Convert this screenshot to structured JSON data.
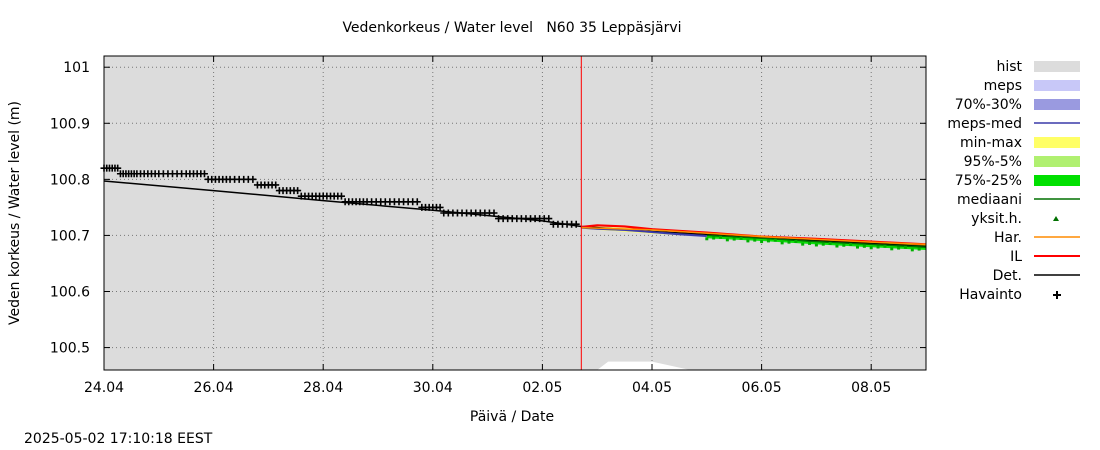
{
  "chart_data": {
    "type": "line",
    "title": "Vedenkorkeus / Water level   N60 35 Leppäsjärvi",
    "xlabel": "Päivä / Date",
    "ylabel": "Veden korkeus / Water level (m)",
    "timestamp": "2025-05-02 17:10:18 EEST",
    "x_unit": "days since 24.04",
    "xlim": [
      0,
      15
    ],
    "ylim": [
      100.46,
      101.02
    ],
    "x_ticks": [
      {
        "label": "24.04",
        "value": 0
      },
      {
        "label": "26.04",
        "value": 2
      },
      {
        "label": "28.04",
        "value": 4
      },
      {
        "label": "30.04",
        "value": 6
      },
      {
        "label": "02.05",
        "value": 8
      },
      {
        "label": "04.05",
        "value": 10
      },
      {
        "label": "06.05",
        "value": 12
      },
      {
        "label": "08.05",
        "value": 14
      }
    ],
    "y_ticks": [
      {
        "label": "100.5",
        "value": 100.5
      },
      {
        "label": "100.6",
        "value": 100.6
      },
      {
        "label": "100.7",
        "value": 100.7
      },
      {
        "label": "100.8",
        "value": 100.8
      },
      {
        "label": "100.9",
        "value": 100.9
      },
      {
        "label": "101",
        "value": 101.0
      }
    ],
    "forecast_start": 8.71,
    "legend": [
      {
        "label": "hist",
        "kind": "box",
        "color": "#dcdcdc"
      },
      {
        "label": "meps",
        "kind": "box",
        "color": "#c8c8f8"
      },
      {
        "label": "70%-30%",
        "kind": "box",
        "color": "#9a9ae0"
      },
      {
        "label": "meps-med",
        "kind": "line",
        "color": "#3a3aa8"
      },
      {
        "label": "min-max",
        "kind": "box",
        "color": "#ffff66"
      },
      {
        "label": "95%-5%",
        "kind": "box",
        "color": "#b0f070"
      },
      {
        "label": "75%-25%",
        "kind": "box",
        "color": "#00e000"
      },
      {
        "label": "mediaani",
        "kind": "line",
        "color": "#007000"
      },
      {
        "label": "yksit.h.",
        "kind": "dot",
        "color": "#007000"
      },
      {
        "label": "Har.",
        "kind": "line",
        "color": "#ff8c00"
      },
      {
        "label": "IL",
        "kind": "line",
        "color": "#ff0000"
      },
      {
        "label": "Det.",
        "kind": "line",
        "color": "#000000"
      },
      {
        "label": "Havainto",
        "kind": "plus",
        "color": "#000000"
      }
    ],
    "series": [
      {
        "name": "Havainto",
        "x": [
          0,
          0.3,
          0.6,
          1.0,
          1.5,
          1.9,
          2.3,
          2.8,
          3.2,
          3.6,
          4.0,
          4.4,
          4.8,
          5.3,
          5.8,
          6.2,
          6.7,
          7.2,
          7.7,
          8.2,
          8.7
        ],
        "y": [
          100.82,
          100.81,
          100.81,
          100.81,
          100.81,
          100.8,
          100.8,
          100.79,
          100.78,
          100.77,
          100.77,
          100.76,
          100.76,
          100.76,
          100.75,
          100.74,
          100.74,
          100.73,
          100.73,
          100.72,
          100.72
        ]
      },
      {
        "name": "Det.",
        "x": [
          0,
          2,
          4,
          6,
          8,
          8.71,
          10,
          12,
          15
        ],
        "y": [
          100.797,
          100.78,
          100.762,
          100.745,
          100.726,
          100.716,
          100.707,
          100.697,
          100.68
        ]
      },
      {
        "name": "IL",
        "x": [
          8.71,
          9.0,
          9.5,
          10.0,
          11.0,
          12.0,
          13.0,
          14.0,
          15.0
        ],
        "y": [
          100.715,
          100.718,
          100.716,
          100.711,
          100.705,
          100.698,
          100.694,
          100.689,
          100.684
        ]
      },
      {
        "name": "meps-med",
        "x": [
          8.71,
          9.0,
          9.5,
          10.0,
          10.5,
          11.0
        ],
        "y": [
          100.714,
          100.712,
          100.71,
          100.706,
          100.702,
          100.699
        ]
      },
      {
        "name": "mediaani",
        "x": [
          11.0,
          12.0,
          13.0,
          14.0,
          15.0
        ],
        "y": [
          100.7,
          100.695,
          100.689,
          100.684,
          100.679
        ]
      },
      {
        "name": "Har.",
        "x": [
          8.71,
          10.0,
          12.0,
          14.0,
          15.0
        ],
        "y": [
          100.714,
          100.71,
          100.698,
          100.688,
          100.684
        ]
      }
    ],
    "bands": [
      {
        "name": "min-max",
        "x": [
          8.71,
          10.0,
          12.0,
          14.0,
          15.0
        ],
        "low": [
          100.712,
          100.703,
          100.692,
          100.681,
          100.675
        ],
        "high": [
          100.717,
          100.712,
          100.7,
          100.69,
          100.686
        ]
      },
      {
        "name": "75%-25%",
        "x": [
          11.0,
          12.0,
          13.0,
          14.0,
          15.0
        ],
        "low": [
          100.695,
          100.69,
          100.684,
          100.679,
          100.674
        ],
        "high": [
          100.702,
          100.697,
          100.692,
          100.687,
          100.684
        ]
      },
      {
        "name": "70%-30%",
        "x": [
          8.71,
          9.5,
          10.0,
          10.5,
          11.0
        ],
        "low": [
          100.712,
          100.708,
          100.704,
          100.7,
          100.697
        ],
        "high": [
          100.715,
          100.712,
          100.708,
          100.704,
          100.701
        ]
      }
    ],
    "hist_gap": {
      "x": [
        8.71,
        9.0,
        9.2,
        10.0,
        10.7,
        11.0
      ],
      "y": [
        100.46,
        100.46,
        100.475,
        100.475,
        100.46,
        100.46
      ]
    }
  }
}
